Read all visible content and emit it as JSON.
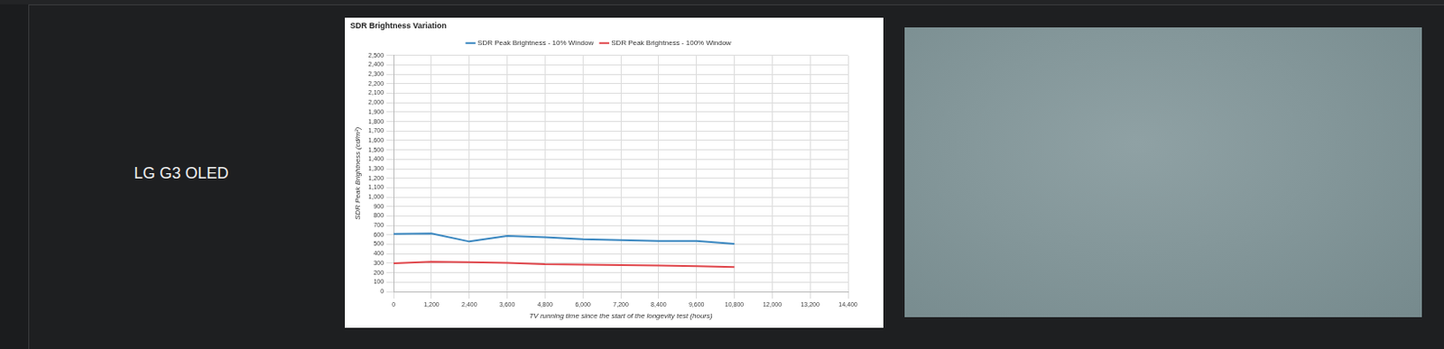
{
  "row_label": "LG G3 OLED",
  "chart_data": {
    "type": "line",
    "title": "SDR Brightness Variation",
    "x_label": "TV running time since the start of the longevity test (hours)",
    "y_label": "SDR Peak Brightness (cd/m²)",
    "x": [
      0,
      1200,
      2400,
      3600,
      4800,
      6000,
      7200,
      8400,
      9600,
      10800
    ],
    "series": [
      {
        "name": "SDR Peak Brightness - 10% Window",
        "color": "#3a87c0",
        "values": [
          610,
          615,
          530,
          590,
          575,
          555,
          545,
          535,
          535,
          505
        ]
      },
      {
        "name": "SDR Peak Brightness - 100% Window",
        "color": "#e0474c",
        "values": [
          300,
          315,
          310,
          305,
          290,
          285,
          280,
          275,
          270,
          260
        ]
      }
    ],
    "xlim": [
      0,
      14400
    ],
    "xticks": [
      0,
      {
        "value": 1200,
        "label": "1,200"
      },
      {
        "value": 2400,
        "label": "2,400"
      },
      {
        "value": 3600,
        "label": "3,600"
      },
      {
        "value": 4800,
        "label": "4,800"
      },
      {
        "value": 6000,
        "label": "6,000"
      },
      {
        "value": 7200,
        "label": "7,200"
      },
      {
        "value": 8400,
        "label": "8,400"
      },
      {
        "value": 9600,
        "label": "9,600"
      },
      {
        "value": 10800,
        "label": "10,800"
      },
      {
        "value": 12000,
        "label": "12,000"
      },
      {
        "value": 13200,
        "label": "13,200"
      },
      {
        "value": 14400,
        "label": "14,400"
      }
    ],
    "ylim": [
      0,
      2500
    ],
    "yticks": [
      0,
      100,
      200,
      300,
      400,
      500,
      600,
      700,
      800,
      900,
      {
        "value": 1000,
        "label": "1,000"
      },
      {
        "value": 1100,
        "label": "1,100"
      },
      {
        "value": 1200,
        "label": "1,200"
      },
      {
        "value": 1300,
        "label": "1,300"
      },
      {
        "value": 1400,
        "label": "1,400"
      },
      {
        "value": 1500,
        "label": "1,500"
      },
      {
        "value": 1600,
        "label": "1,600"
      },
      {
        "value": 1700,
        "label": "1,700"
      },
      {
        "value": 1800,
        "label": "1,800"
      },
      {
        "value": 1900,
        "label": "1,900"
      },
      {
        "value": 2000,
        "label": "2,000"
      },
      {
        "value": 2100,
        "label": "2,100"
      },
      {
        "value": 2200,
        "label": "2,200"
      },
      {
        "value": 2300,
        "label": "2,300"
      },
      {
        "value": 2400,
        "label": "2,400"
      },
      {
        "value": 2500,
        "label": "2,500"
      }
    ],
    "grid": true,
    "legend": "top"
  }
}
